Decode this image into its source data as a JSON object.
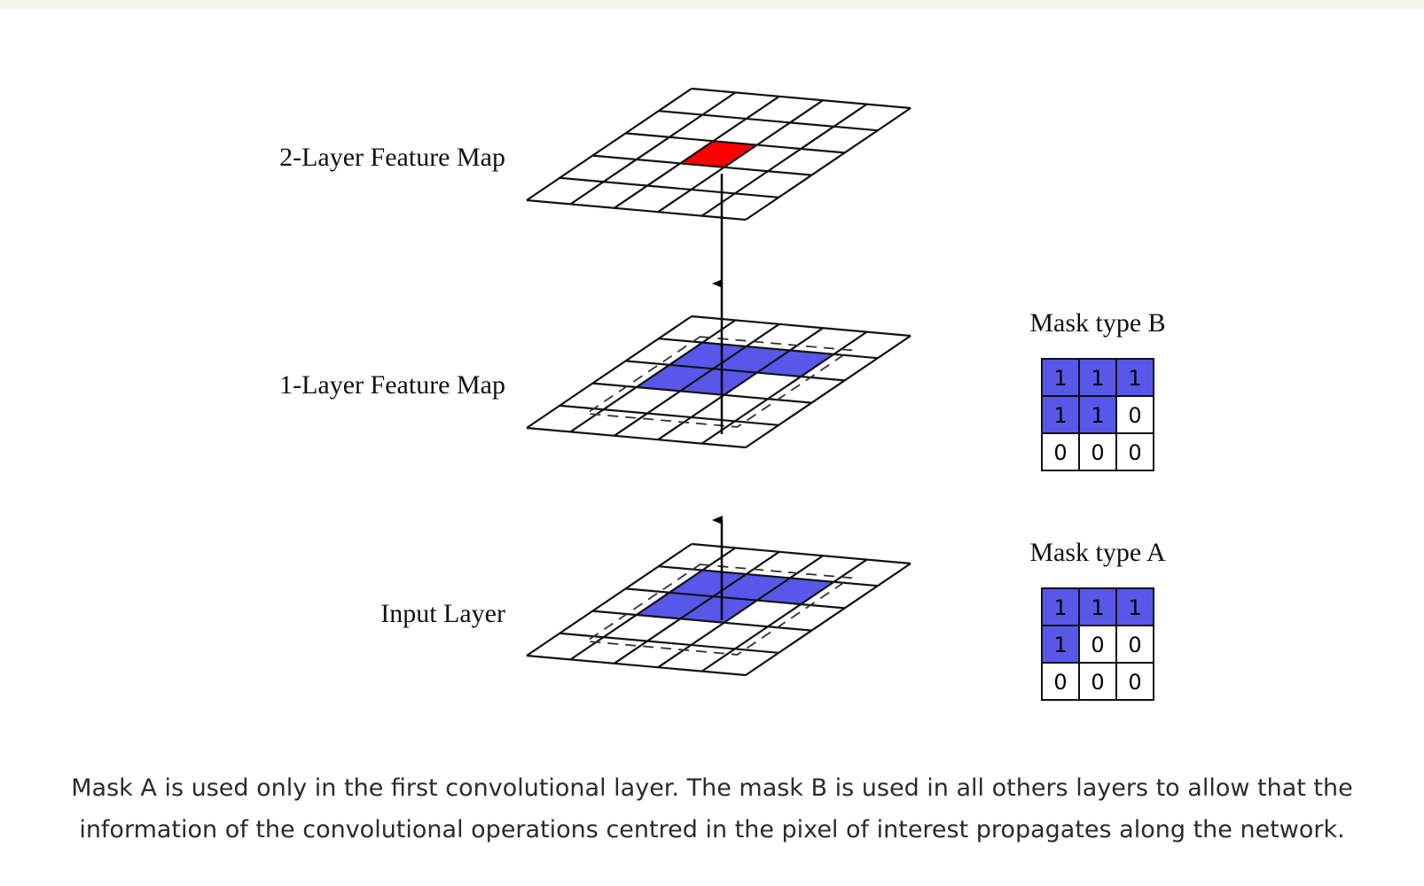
{
  "colors": {
    "highlight_red": "#ff0000",
    "mask_blue": "#5757ea",
    "grid_line": "#111111",
    "top_band": "#f7f6ea"
  },
  "layers": [
    {
      "label": "2-Layer Feature Map",
      "highlight": "red",
      "mask_overlay": false
    },
    {
      "label": "1-Layer Feature Map",
      "highlight": "blue",
      "mask_overlay": true
    },
    {
      "label": "Input Layer",
      "highlight": "blue",
      "mask_overlay": true
    }
  ],
  "masks": [
    {
      "title": "Mask type B",
      "values": [
        [
          "1",
          "1",
          "1"
        ],
        [
          "1",
          "1",
          "0"
        ],
        [
          "0",
          "0",
          "0"
        ]
      ]
    },
    {
      "title": "Mask type A",
      "values": [
        [
          "1",
          "1",
          "1"
        ],
        [
          "1",
          "0",
          "0"
        ],
        [
          "0",
          "0",
          "0"
        ]
      ]
    }
  ],
  "caption": {
    "line1": "Mask A is used only in the first convolutional layer. The mask B is used in all others layers to allow that the",
    "line2": "information of the convolutional operations centred in the pixel of interest propagates along the network."
  }
}
